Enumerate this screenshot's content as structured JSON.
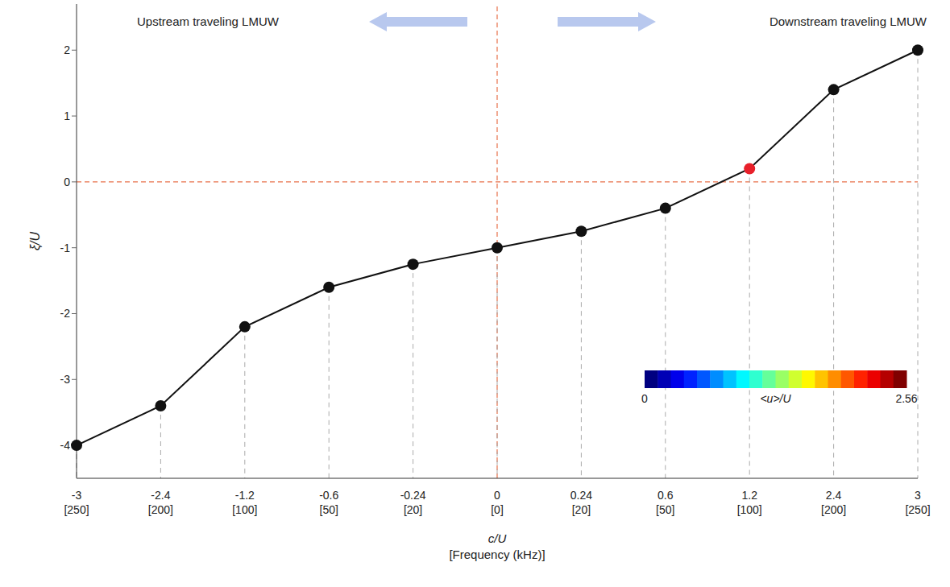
{
  "chart_data": {
    "type": "line",
    "xlabel": [
      "c/U",
      "[Frequency (kHz)]"
    ],
    "ylabel": "ξ/U",
    "categories": [
      "-3\n[250]",
      "-2.4\n[200]",
      "-1.2\n[100]",
      "-0.6\n[50]",
      "-0.24\n[20]",
      "0\n[0]",
      "0.24\n[20]",
      "0.6\n[50]",
      "1.2\n[100]",
      "2.4\n[200]",
      "3\n[250]"
    ],
    "values": [
      -4,
      -3.4,
      -2.2,
      -1.6,
      -1.25,
      -1,
      -0.75,
      -0.4,
      0.2,
      1.4,
      2
    ],
    "color": "#111111",
    "colors": [
      "#111111",
      "#111111",
      "#111111",
      "#111111",
      "#111111",
      "#111111",
      "#111111",
      "#111111",
      "#e8202a",
      "#111111",
      "#111111"
    ],
    "marker": "circle",
    "ylim": [
      -4.5,
      2.7
    ],
    "yticks": [
      -4,
      -3,
      -2,
      -1,
      0,
      1,
      2
    ],
    "grid": false,
    "reference_lines": {
      "x_category": "0\n[0]",
      "y": 0
    },
    "annotations": [
      "Upstream traveling LMUW",
      "Downstream traveling LMUW"
    ],
    "colorbar": {
      "range": [
        0,
        2.56
      ],
      "ticks": [
        0,
        2.56
      ],
      "label": "<u>/U"
    }
  }
}
